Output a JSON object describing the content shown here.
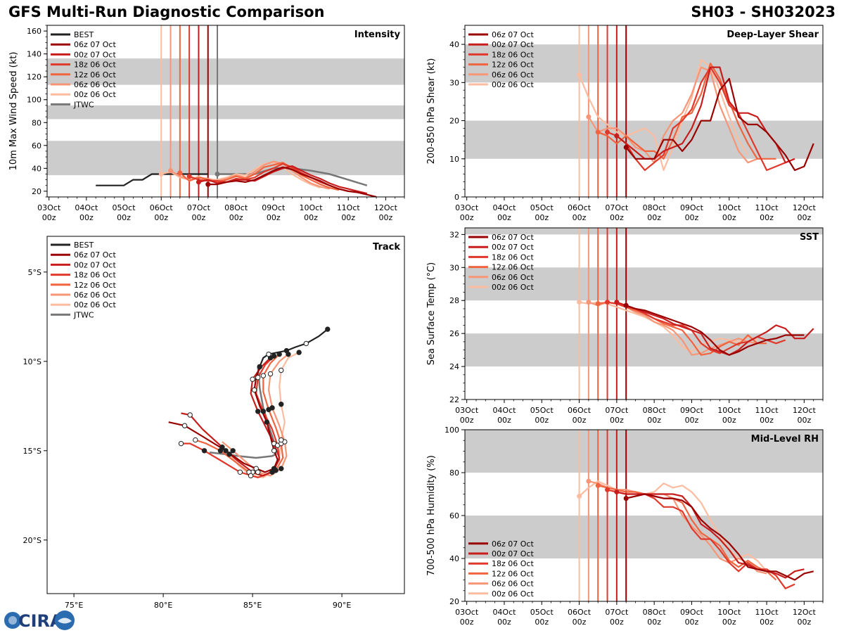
{
  "header": {
    "title_left": "GFS Multi-Run Diagnostic Comparison",
    "title_right": "SH03 - SH032023"
  },
  "logo": {
    "text": "CIRA",
    "color": "#1f3f7a",
    "accent": "#2b6cb0"
  },
  "colors": {
    "band": "#cccccc",
    "best": "#222222",
    "jtwc": "#777777",
    "runs": [
      "#990000",
      "#c81d1d",
      "#e0392b",
      "#f0643f",
      "#f79577",
      "#fbbca0"
    ]
  },
  "runs": [
    "06z 07 Oct",
    "00z 07 Oct",
    "18z 06 Oct",
    "12z 06 Oct",
    "06z 06 Oct",
    "00z 06 Oct"
  ],
  "run_start_days": [
    1.25,
    1.0,
    0.75,
    0.5,
    0.25,
    0.0
  ],
  "time_axis": {
    "days": [
      "03Oct",
      "04Oct",
      "05Oct",
      "06Oct",
      "07Oct",
      "08Oct",
      "09Oct",
      "10Oct",
      "11Oct",
      "12Oct"
    ],
    "hour": "00z"
  },
  "chart_data": [
    {
      "id": "intensity",
      "type": "line",
      "title": "Intensity",
      "ylabel": "10m Max Wind Speed (kt)",
      "ylim": [
        15,
        165
      ],
      "xlim": [
        -3.05,
        6.5
      ],
      "yticks": [
        20,
        40,
        60,
        80,
        100,
        120,
        140,
        160
      ],
      "minor_step": 5,
      "bands": [
        [
          34,
          64
        ],
        [
          83,
          95
        ],
        [
          113,
          136
        ]
      ],
      "legend": [
        "BEST",
        "06z 07 Oct",
        "00z 07 Oct",
        "18z 06 Oct",
        "12z 06 Oct",
        "06z 06 Oct",
        "00z 06 Oct",
        "JTWC"
      ],
      "best": {
        "x": [
          -1.75,
          -1.0,
          -0.75,
          -0.5,
          -0.25,
          0,
          0.5,
          1.0,
          1.25
        ],
        "y": [
          25,
          25,
          30,
          30,
          35,
          35,
          35,
          35,
          35
        ]
      },
      "jtwc": {
        "x": [
          1.5,
          2.0,
          2.5,
          3.0,
          3.5,
          4.0,
          4.5,
          5.0,
          5.5
        ],
        "y": [
          35,
          35,
          35,
          40,
          40,
          38,
          35,
          30,
          25
        ]
      },
      "jtwc_vline": 1.5,
      "series": [
        {
          "name": "06z 07 Oct",
          "values": [
            26,
            26,
            28,
            29,
            28,
            30,
            34,
            38,
            41,
            39,
            35,
            32,
            29,
            25,
            22,
            20,
            19,
            17,
            15
          ]
        },
        {
          "name": "00z 07 Oct",
          "values": [
            28,
            30,
            27,
            28,
            30,
            30,
            29,
            33,
            37,
            40,
            42,
            38,
            34,
            31,
            27,
            24,
            22,
            20,
            18
          ]
        },
        {
          "name": "18z 06 Oct",
          "values": [
            33,
            30,
            29,
            29,
            28,
            31,
            30,
            32,
            37,
            40,
            44,
            41,
            36,
            32,
            28,
            25,
            22,
            20
          ]
        },
        {
          "name": "12z 06 Oct",
          "values": [
            36,
            29,
            32,
            30,
            28,
            30,
            33,
            31,
            35,
            41,
            43,
            45,
            40,
            34,
            30,
            26,
            23,
            21
          ]
        },
        {
          "name": "06z 06 Oct",
          "values": [
            38,
            33,
            30,
            32,
            31,
            29,
            31,
            34,
            32,
            37,
            43,
            46,
            44,
            38,
            32,
            27,
            24,
            22
          ]
        },
        {
          "name": "00z 06 Oct",
          "values": [
            35,
            37,
            32,
            30,
            33,
            30,
            30,
            32,
            35,
            34,
            39,
            44,
            45,
            41,
            35,
            30,
            26,
            23
          ]
        }
      ]
    },
    {
      "id": "track",
      "type": "line",
      "title": "Track",
      "xlim": [
        73.5,
        93.5
      ],
      "ylim": [
        -23,
        -3
      ],
      "xticks": [
        75,
        80,
        85,
        90
      ],
      "xtick_labels": [
        "75°E",
        "80°E",
        "85°E",
        "90°E"
      ],
      "yticks": [
        -5,
        -10,
        -15,
        -20
      ],
      "ytick_labels": [
        "5°S",
        "10°S",
        "15°S",
        "20°S"
      ],
      "legend": [
        "BEST",
        "06z 07 Oct",
        "00z 07 Oct",
        "18z 06 Oct",
        "12z 06 Oct",
        "06z 06 Oct",
        "00z 06 Oct",
        "JTWC"
      ],
      "best": {
        "lon": [
          89.2,
          88.7,
          88.0,
          87.4,
          86.9,
          86.4,
          85.9,
          85.6,
          85.4
        ],
        "lat": [
          -8.2,
          -8.6,
          -9.0,
          -9.2,
          -9.4,
          -9.5,
          -9.6,
          -9.8,
          -10.3
        ]
      },
      "jtwc": {
        "lon": [
          85.3,
          85.4,
          85.6,
          85.9,
          86.2,
          86.3,
          86.1,
          85.2,
          84.2,
          83.5,
          82.6
        ],
        "lat": [
          -10.3,
          -11.5,
          -12.6,
          -13.6,
          -14.5,
          -15.2,
          -15.3,
          -15.4,
          -15.3,
          -15.2,
          -15.1
        ]
      },
      "series": [
        {
          "name": "06z 07 Oct",
          "lon": [
            85.4,
            85.2,
            85.1,
            85.4,
            85.8,
            86.0,
            86.2,
            86.4,
            86.2,
            85.7,
            85.2,
            84.5,
            83.5,
            82.2,
            81.2,
            80.3
          ],
          "lat": [
            -10.3,
            -10.9,
            -11.6,
            -12.5,
            -13.4,
            -14.2,
            -15.0,
            -15.5,
            -16.0,
            -16.2,
            -16.0,
            -15.7,
            -15.0,
            -14.2,
            -13.6,
            -13.4
          ]
        },
        {
          "name": "00z 07 Oct",
          "lon": [
            86.0,
            85.5,
            85.0,
            84.9,
            85.3,
            85.8,
            86.2,
            86.5,
            86.2,
            85.6,
            85.0,
            84.2,
            83.3,
            82.2,
            81.5,
            81.0
          ],
          "lat": [
            -9.8,
            -10.3,
            -11.0,
            -11.8,
            -12.8,
            -13.8,
            -14.6,
            -15.4,
            -16.1,
            -16.4,
            -16.2,
            -15.6,
            -14.8,
            -13.8,
            -13.0,
            -12.9
          ]
        },
        {
          "name": "18z 06 Oct",
          "lon": [
            86.2,
            85.7,
            85.3,
            85.2,
            85.6,
            86.1,
            86.4,
            86.5,
            86.1,
            85.3,
            84.3,
            83.3,
            82.3,
            81.5,
            81.0
          ],
          "lat": [
            -9.7,
            -10.2,
            -10.9,
            -11.8,
            -12.8,
            -13.8,
            -14.7,
            -15.5,
            -16.2,
            -16.5,
            -16.2,
            -15.6,
            -15.0,
            -14.6,
            -14.6
          ]
        },
        {
          "name": "12z 06 Oct",
          "lon": [
            86.5,
            86.0,
            85.6,
            85.6,
            85.9,
            86.3,
            86.6,
            86.7,
            86.3,
            85.6,
            84.8,
            84.0,
            83.2,
            82.4,
            81.8
          ],
          "lat": [
            -9.6,
            -10.1,
            -10.8,
            -11.7,
            -12.7,
            -13.7,
            -14.6,
            -15.4,
            -16.1,
            -16.4,
            -16.2,
            -15.6,
            -15.0,
            -14.6,
            -14.4
          ]
        },
        {
          "name": "06z 06 Oct",
          "lon": [
            87.0,
            86.5,
            86.0,
            85.9,
            86.1,
            86.5,
            86.8,
            86.9,
            86.6,
            86.0,
            85.3,
            84.6,
            83.9,
            83.3
          ],
          "lat": [
            -9.6,
            -10.0,
            -10.7,
            -11.6,
            -12.6,
            -13.6,
            -14.5,
            -15.3,
            -16.0,
            -16.4,
            -16.2,
            -15.6,
            -15.0,
            -14.5
          ]
        },
        {
          "name": "00z 06 Oct",
          "lon": [
            87.6,
            87.0,
            86.6,
            86.5,
            86.6,
            86.8,
            86.6,
            86.5,
            86.2,
            85.6,
            84.9,
            84.2,
            83.7
          ],
          "lat": [
            -9.5,
            -9.8,
            -10.5,
            -11.4,
            -12.4,
            -13.4,
            -14.4,
            -15.3,
            -16.1,
            -16.5,
            -16.4,
            -15.8,
            -15.2
          ]
        }
      ]
    },
    {
      "id": "shear",
      "type": "line",
      "title": "Deep-Layer Shear",
      "ylabel": "200-850 hPa Shear (kt)",
      "ylim": [
        0,
        45
      ],
      "xlim": [
        -3.05,
        6.5
      ],
      "yticks": [
        0,
        10,
        20,
        30,
        40
      ],
      "minor_step": 2,
      "bands": [
        [
          10,
          20
        ],
        [
          30,
          40
        ]
      ],
      "legend": [
        "06z 07 Oct",
        "00z 07 Oct",
        "18z 06 Oct",
        "12z 06 Oct",
        "06z 06 Oct",
        "00z 06 Oct"
      ],
      "series": [
        {
          "name": "06z 07 Oct",
          "values": [
            13,
            10,
            10,
            10,
            15,
            15,
            12,
            15,
            20,
            20,
            28,
            31,
            21,
            19,
            19,
            17,
            14,
            11,
            7,
            8,
            14
          ]
        },
        {
          "name": "00z 07 Oct",
          "values": [
            16,
            14,
            12,
            10,
            10,
            12,
            13,
            14,
            18,
            24,
            34,
            34,
            25,
            22,
            22,
            21,
            17,
            14,
            9,
            10
          ]
        },
        {
          "name": "18z 06 Oct",
          "values": [
            17,
            16,
            14,
            10,
            7,
            9,
            11,
            18,
            20,
            23,
            30,
            34,
            30,
            24,
            22,
            17,
            12,
            7,
            8,
            9
          ]
        },
        {
          "name": "12z 06 Oct",
          "values": [
            17,
            16,
            14,
            16,
            14,
            12,
            12,
            10,
            15,
            21,
            22,
            27,
            35,
            31,
            25,
            19,
            14,
            10,
            10,
            10
          ]
        },
        {
          "name": "06z 06 Oct",
          "values": [
            21,
            17,
            18,
            18,
            16,
            13,
            12,
            9,
            16,
            20,
            22,
            27,
            34,
            33,
            24,
            18,
            12,
            9,
            10
          ]
        },
        {
          "name": "00z 06 Oct",
          "values": [
            32,
            26,
            21,
            19,
            17,
            16,
            17,
            18,
            16,
            7,
            13,
            20,
            26,
            36,
            34,
            28,
            21,
            15,
            11
          ]
        }
      ]
    },
    {
      "id": "sst",
      "type": "line",
      "title": "SST",
      "ylabel": "Sea Surface Temp (°C)",
      "ylim": [
        22,
        32.4
      ],
      "xlim": [
        -3.05,
        6.5
      ],
      "yticks": [
        22,
        24,
        26,
        28,
        30,
        32
      ],
      "minor_step": 0.5,
      "bands": [
        [
          24,
          26
        ],
        [
          28,
          30
        ],
        [
          32,
          33
        ]
      ],
      "legend": [
        "06z 07 Oct",
        "00z 07 Oct",
        "18z 06 Oct",
        "12z 06 Oct",
        "06z 06 Oct",
        "00z 06 Oct"
      ],
      "series": [
        {
          "name": "06z 07 Oct",
          "values": [
            27.7,
            27.5,
            27.4,
            27.2,
            27.0,
            26.8,
            26.6,
            26.4,
            26.1,
            25.6,
            25.0,
            24.7,
            24.9,
            25.2,
            25.4,
            25.6,
            25.7,
            25.9,
            25.9,
            25.9
          ]
        },
        {
          "name": "00z 07 Oct",
          "values": [
            27.9,
            27.7,
            27.5,
            27.3,
            27.1,
            26.9,
            26.6,
            26.4,
            26.2,
            26.0,
            25.1,
            24.9,
            24.7,
            25.0,
            25.5,
            25.8,
            26.1,
            26.5,
            26.3,
            25.7,
            25.7,
            26.3
          ]
        },
        {
          "name": "18z 06 Oct",
          "values": [
            27.9,
            27.8,
            27.6,
            27.5,
            27.2,
            26.9,
            26.7,
            26.5,
            26.5,
            26.2,
            25.4,
            25.0,
            24.8,
            25.1,
            25.4,
            25.5,
            25.8,
            25.6,
            25.4,
            25.6
          ]
        },
        {
          "name": "12z 06 Oct",
          "values": [
            27.8,
            27.9,
            27.8,
            27.6,
            27.4,
            27.2,
            26.9,
            26.6,
            26.4,
            26.2,
            25.5,
            24.7,
            24.8,
            25.2,
            25.5,
            25.3,
            25.9,
            25.4,
            25.4
          ]
        },
        {
          "name": "06z 06 Oct",
          "values": [
            27.9,
            27.7,
            27.9,
            27.8,
            27.6,
            27.3,
            27.1,
            26.7,
            26.5,
            26.2,
            25.6,
            24.7,
            24.8,
            25.1,
            25.3,
            25.5,
            25.7,
            25.5,
            25.4
          ]
        },
        {
          "name": "00z 06 Oct",
          "values": [
            27.9,
            27.8,
            27.9,
            27.8,
            27.6,
            27.4,
            27.2,
            27.0,
            26.7,
            26.4,
            25.9,
            25.2,
            24.9,
            25.3,
            25.5,
            25.7,
            25.6,
            25.5,
            25.8,
            25.6
          ]
        }
      ]
    },
    {
      "id": "rh",
      "type": "line",
      "title": "Mid-Level RH",
      "ylabel": "700-500 hPa Humidity (%)",
      "ylim": [
        20,
        100
      ],
      "xlim": [
        -3.05,
        6.5
      ],
      "yticks": [
        20,
        40,
        60,
        80,
        100
      ],
      "minor_step": 5,
      "bands": [
        [
          40,
          60
        ],
        [
          80,
          100
        ]
      ],
      "legend": [
        "06z 07 Oct",
        "00z 07 Oct",
        "18z 06 Oct",
        "12z 06 Oct",
        "06z 06 Oct",
        "00z 06 Oct"
      ],
      "series": [
        {
          "name": "06z 07 Oct",
          "values": [
            68,
            69,
            70,
            69,
            68,
            68,
            67,
            64,
            58,
            54,
            51,
            47,
            42,
            36,
            35,
            34,
            34,
            32,
            30,
            33,
            34
          ]
        },
        {
          "name": "00z 07 Oct",
          "values": [
            71,
            70,
            70,
            70,
            70,
            70,
            70,
            69,
            64,
            56,
            53,
            49,
            44,
            38,
            37,
            35,
            34,
            33,
            31,
            34,
            35
          ]
        },
        {
          "name": "18z 06 Oct",
          "values": [
            72,
            71,
            70,
            70,
            70,
            68,
            64,
            64,
            62,
            54,
            49,
            49,
            44,
            38,
            34,
            38,
            35,
            35,
            32,
            26,
            28
          ]
        },
        {
          "name": "12z 06 Oct",
          "values": [
            74,
            73,
            72,
            71,
            71,
            70,
            69,
            68,
            68,
            66,
            58,
            52,
            49,
            46,
            39,
            36,
            39,
            36,
            34,
            30
          ]
        },
        {
          "name": "06z 06 Oct",
          "values": [
            76,
            75,
            73,
            72,
            72,
            71,
            70,
            70,
            70,
            68,
            60,
            55,
            51,
            46,
            40,
            38,
            40,
            38,
            34,
            33
          ]
        },
        {
          "name": "00z 06 Oct",
          "values": [
            69,
            73,
            76,
            74,
            72,
            72,
            71,
            70,
            71,
            75,
            73,
            74,
            71,
            66,
            58,
            51,
            44,
            40,
            42,
            39,
            34
          ]
        }
      ]
    }
  ]
}
